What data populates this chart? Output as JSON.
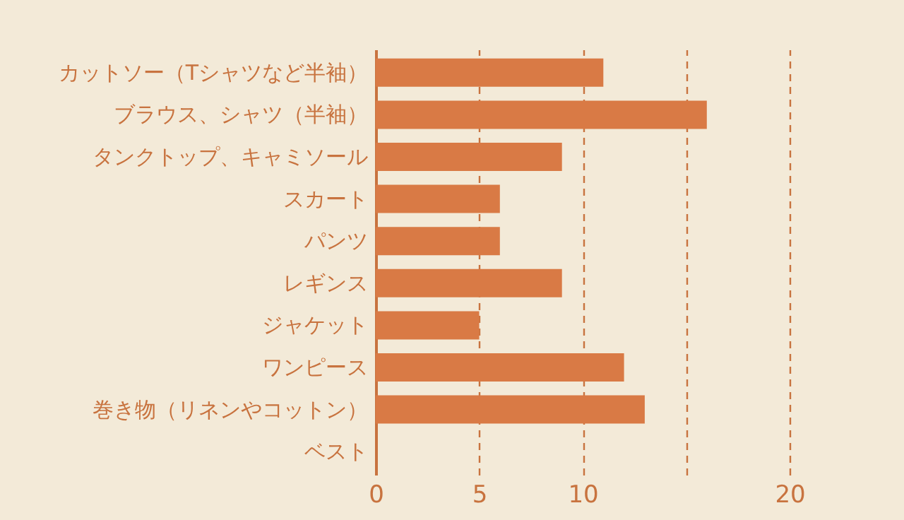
{
  "chart_data": {
    "type": "bar",
    "orientation": "horizontal",
    "categories": [
      "カットソー（Tシャツなど半袖）",
      "ブラウス、シャツ（半袖）",
      "タンクトップ、キャミソール",
      "スカート",
      "パンツ",
      "レギンス",
      "ジャケット",
      "ワンピース",
      "巻き物（リネンやコットン）",
      "ベスト"
    ],
    "values": [
      11,
      16,
      9,
      6,
      6,
      9,
      5,
      12,
      13,
      0
    ],
    "color": "#d97a45",
    "xlim": [
      0,
      20
    ],
    "xticks": [
      0,
      5,
      10,
      {
        "value": 15,
        "label": null
      },
      20
    ],
    "grid": "x"
  }
}
